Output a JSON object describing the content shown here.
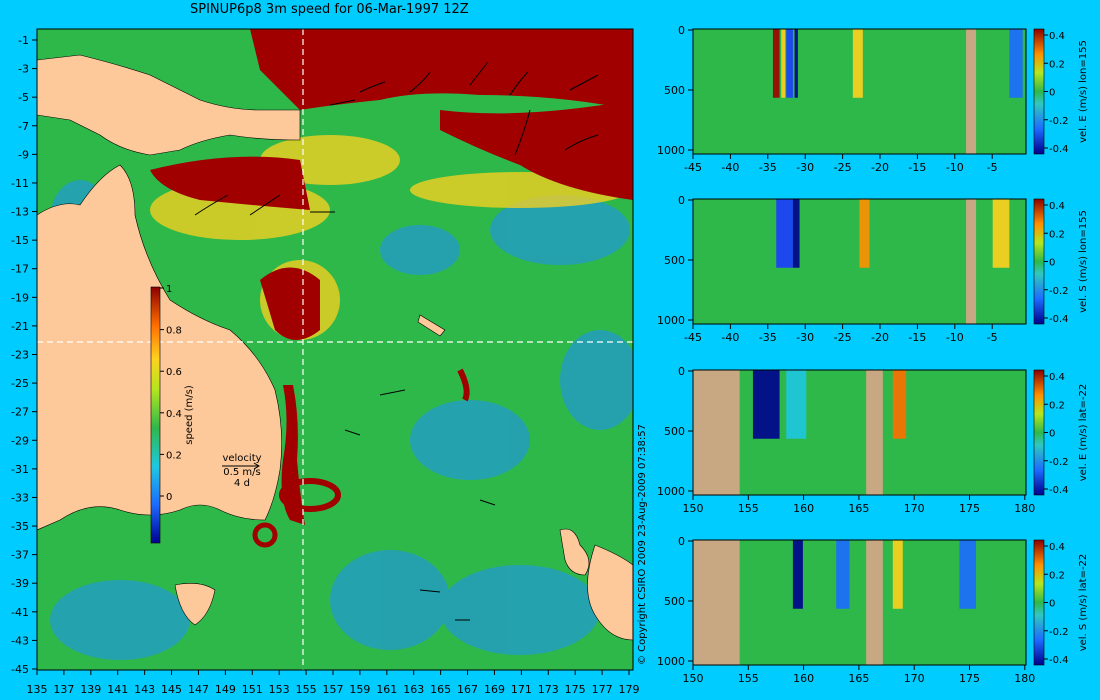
{
  "title": "SPINUP6p8 3m speed for 06-Mar-1997 12Z",
  "copyright": "© Copyright CSIRO 2009   23-Aug-2009 07:38:57",
  "map": {
    "lon_ticks": [
      "135",
      "137",
      "139",
      "141",
      "143",
      "145",
      "147",
      "149",
      "151",
      "153",
      "155",
      "157",
      "159",
      "161",
      "163",
      "165",
      "167",
      "169",
      "171",
      "173",
      "175",
      "177",
      "179"
    ],
    "lat_ticks": [
      "-1",
      "-3",
      "-5",
      "-7",
      "-9",
      "-11",
      "-13",
      "-15",
      "-17",
      "-19",
      "-21",
      "-23",
      "-25",
      "-27",
      "-29",
      "-31",
      "-33",
      "-35",
      "-37",
      "-39",
      "-41",
      "-43",
      "-45"
    ],
    "section_lon": 155,
    "section_lat": -22,
    "colorbar": {
      "label": "speed (m/s)",
      "ticks": [
        "1",
        "0.8",
        "0.6",
        "0.4",
        "0.2",
        "0"
      ]
    },
    "velocity_key": {
      "title": "velocity",
      "speed": "0.5 m/s",
      "duration": "4 d"
    },
    "colors": {
      "ocean": "#2fb84a",
      "land": "#fdc89a",
      "fast": "#a00000"
    }
  },
  "panels": [
    {
      "label": "vel. E (m/s) lon=155",
      "x_ticks": [
        "-45",
        "-40",
        "-35",
        "-30",
        "-25",
        "-20",
        "-15",
        "-10",
        "-5"
      ],
      "y_ticks": [
        "0",
        "500",
        "1000"
      ],
      "cb_ticks": [
        "0.4",
        "0.2",
        "0",
        "-0.2",
        "-0.4"
      ]
    },
    {
      "label": "vel. S (m/s) lon=155",
      "x_ticks": [
        "-45",
        "-40",
        "-35",
        "-30",
        "-25",
        "-20",
        "-15",
        "-10",
        "-5"
      ],
      "y_ticks": [
        "0",
        "500",
        "1000"
      ],
      "cb_ticks": [
        "0.4",
        "0.2",
        "0",
        "-0.2",
        "-0.4"
      ]
    },
    {
      "label": "vel. E (m/s) lat=-22",
      "x_ticks": [
        "150",
        "155",
        "160",
        "165",
        "170",
        "175",
        "180"
      ],
      "y_ticks": [
        "0",
        "500",
        "1000"
      ],
      "cb_ticks": [
        "0.4",
        "0.2",
        "0",
        "-0.2",
        "-0.4"
      ]
    },
    {
      "label": "vel. S (m/s) lat=-22",
      "x_ticks": [
        "150",
        "155",
        "160",
        "165",
        "170",
        "175",
        "180"
      ],
      "y_ticks": [
        "0",
        "500",
        "1000"
      ],
      "cb_ticks": [
        "0.4",
        "0.2",
        "0",
        "-0.2",
        "-0.4"
      ]
    }
  ]
}
